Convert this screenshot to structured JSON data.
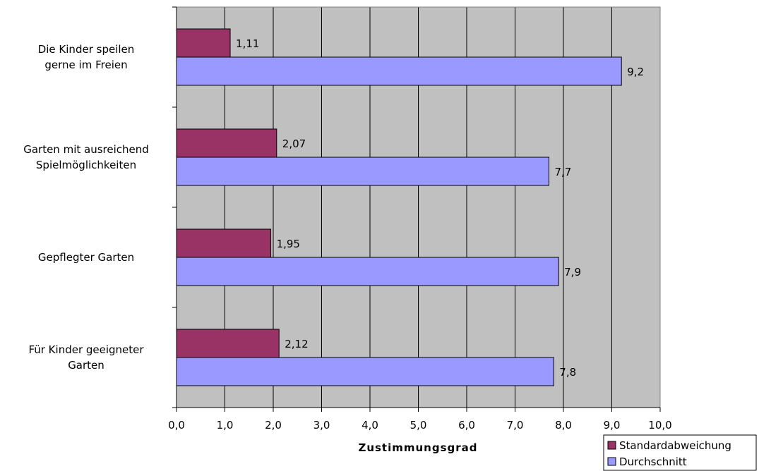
{
  "chart_data": {
    "type": "bar",
    "orientation": "horizontal",
    "categories": [
      [
        "Die Kinder speilen",
        "gerne im Freien"
      ],
      [
        "Garten mit ausreichend",
        "Spielmöglichkeiten"
      ],
      [
        "Gepflegter Garten"
      ],
      [
        "Für Kinder geeigneter",
        "Garten"
      ]
    ],
    "series": [
      {
        "name": "Standardabweichung",
        "color": "#993366",
        "values": [
          1.11,
          2.07,
          1.95,
          2.12
        ],
        "labels": [
          "1,11",
          "2,07",
          "1,95",
          "2,12"
        ]
      },
      {
        "name": "Durchschnitt",
        "color": "#9999ff",
        "values": [
          9.2,
          7.7,
          7.9,
          7.8
        ],
        "labels": [
          "9,2",
          "7,7",
          "7,9",
          "7,8"
        ]
      }
    ],
    "xlabel": "Zustimmungsgrad",
    "xlim": [
      0,
      10
    ],
    "xticks": [
      0,
      1,
      2,
      3,
      4,
      5,
      6,
      7,
      8,
      9,
      10
    ],
    "xtick_labels": [
      "0,0",
      "1,0",
      "2,0",
      "3,0",
      "4,0",
      "5,0",
      "6,0",
      "7,0",
      "8,0",
      "9,0",
      "10,0"
    ],
    "grid": true,
    "plot_background": "#c0c0c0",
    "legend_position": "bottom-right"
  }
}
